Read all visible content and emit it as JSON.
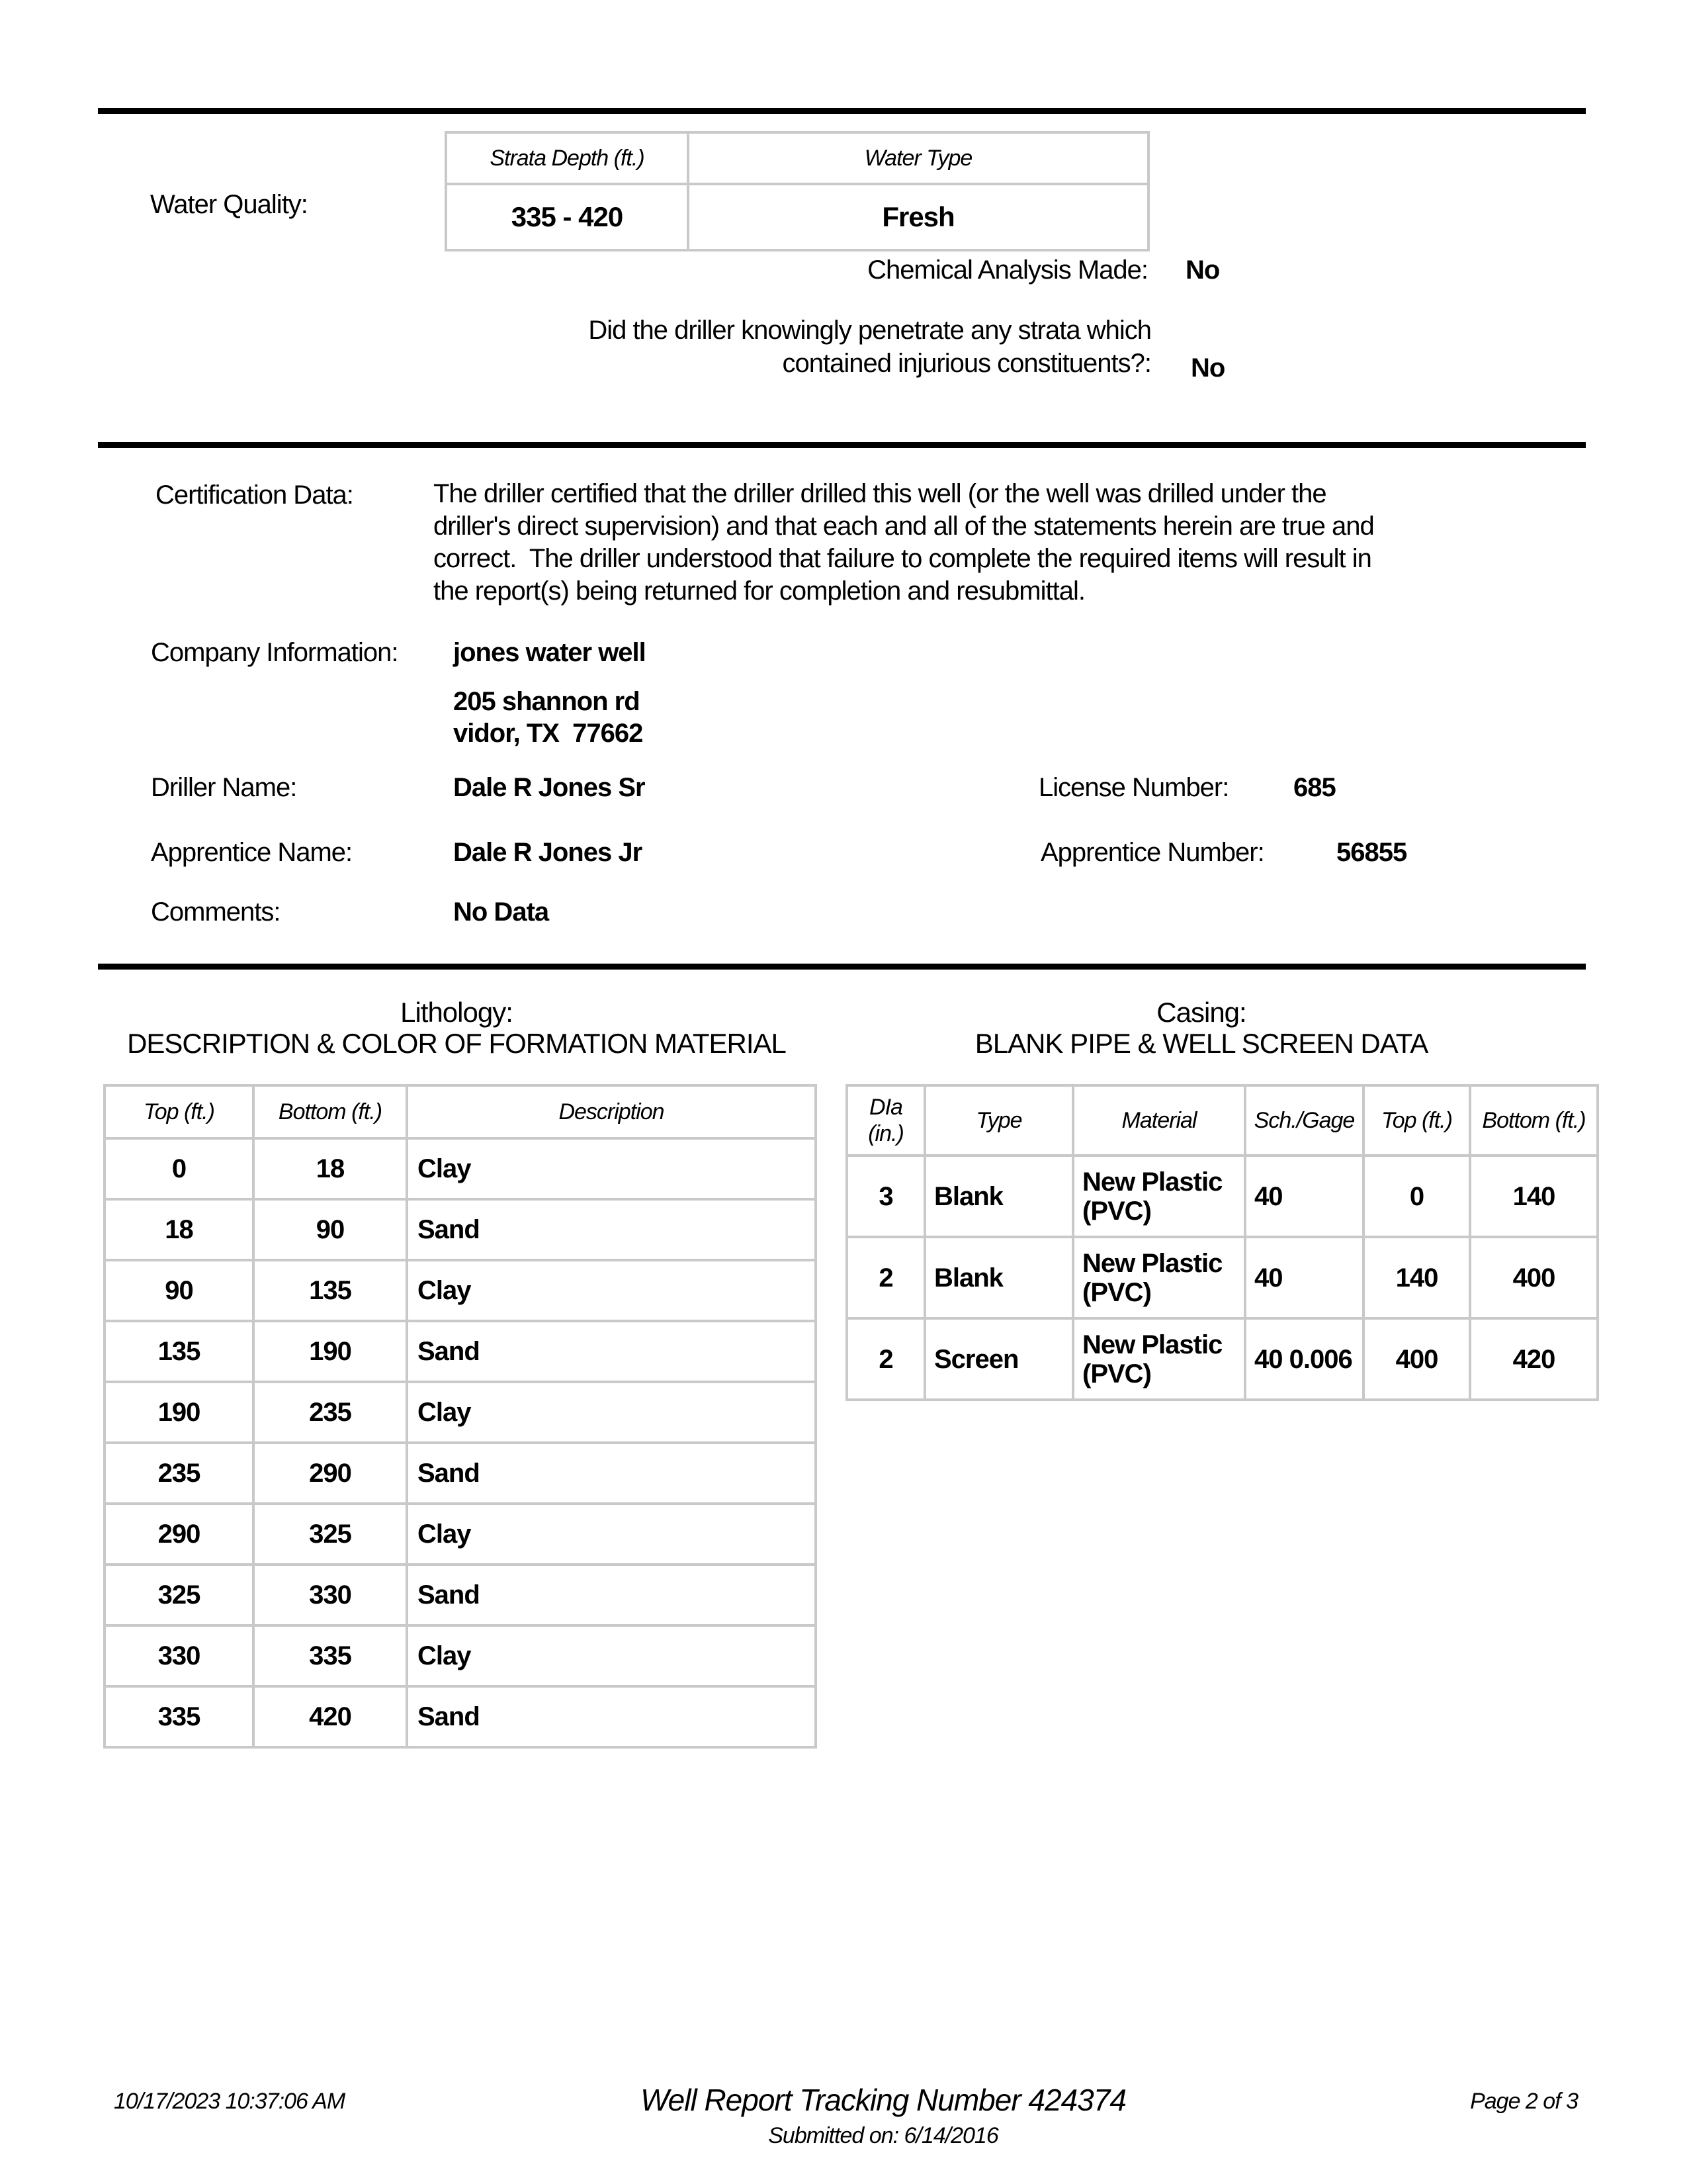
{
  "water_quality": {
    "label": "Water Quality:",
    "table": {
      "headers": [
        "Strata Depth (ft.)",
        "Water Type"
      ],
      "rows": [
        [
          "335 - 420",
          "Fresh"
        ]
      ]
    },
    "chemical_analysis_label": "Chemical Analysis Made:",
    "chemical_analysis_value": "No",
    "injurious": {
      "lines": [
        "Did the driller knowingly penetrate any strata which",
        "contained injurious constituents?:"
      ],
      "value": "No"
    }
  },
  "certification": {
    "label": "Certification Data:",
    "lines": [
      "The driller certified that the driller drilled this well (or the well was drilled under the",
      "driller's direct supervision) and that each and all of the statements herein are true and",
      "correct.  The driller understood that failure to complete the required items will result in",
      "the report(s) being returned for completion and resubmittal."
    ]
  },
  "company": {
    "label": "Company Information:",
    "name": "jones water well",
    "address_line1": "205 shannon rd",
    "address_line2": "vidor, TX  77662"
  },
  "driller": {
    "label": "Driller Name:",
    "name": "Dale R Jones Sr"
  },
  "license": {
    "label": "License Number:",
    "value": "685"
  },
  "apprentice": {
    "label": "Apprentice Name:",
    "name": "Dale R Jones Jr"
  },
  "apprentice_number": {
    "label": "Apprentice Number:",
    "value": "56855"
  },
  "comments": {
    "label": "Comments:",
    "value": "No Data"
  },
  "lithology": {
    "title": "Lithology:",
    "subtitle": "DESCRIPTION & COLOR OF FORMATION MATERIAL",
    "table": {
      "headers": [
        "Top (ft.)",
        "Bottom (ft.)",
        "Description"
      ],
      "rows": [
        [
          "0",
          "18",
          "Clay"
        ],
        [
          "18",
          "90",
          "Sand"
        ],
        [
          "90",
          "135",
          "Clay"
        ],
        [
          "135",
          "190",
          "Sand"
        ],
        [
          "190",
          "235",
          "Clay"
        ],
        [
          "235",
          "290",
          "Sand"
        ],
        [
          "290",
          "325",
          "Clay"
        ],
        [
          "325",
          "330",
          "Sand"
        ],
        [
          "330",
          "335",
          "Clay"
        ],
        [
          "335",
          "420",
          "Sand"
        ]
      ]
    }
  },
  "casing": {
    "title": "Casing:",
    "subtitle": "BLANK PIPE & WELL SCREEN DATA",
    "table": {
      "headers": [
        "DIa (in.)",
        "Type",
        "Material",
        "Sch./Gage",
        "Top (ft.)",
        "Bottom (ft.)"
      ],
      "rows": [
        [
          "3",
          "Blank",
          "New Plastic (PVC)",
          "40",
          "0",
          "140"
        ],
        [
          "2",
          "Blank",
          "New Plastic (PVC)",
          "40",
          "140",
          "400"
        ],
        [
          "2",
          "Screen",
          "New Plastic (PVC)",
          "40 0.006",
          "400",
          "420"
        ]
      ]
    }
  },
  "footer": {
    "datetime": "10/17/2023 10:37:06 AM",
    "tracking": "Well Report Tracking Number 424374",
    "submitted": "Submitted on: 6/14/2016",
    "page": "Page 2 of 3"
  }
}
